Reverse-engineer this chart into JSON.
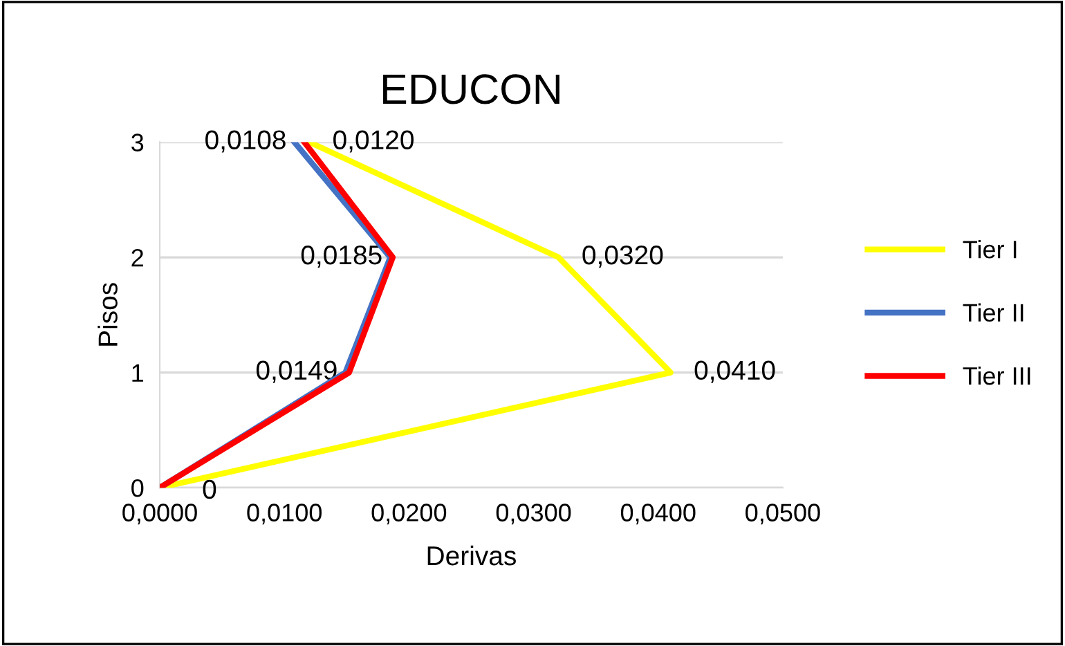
{
  "chart_data": {
    "type": "line",
    "title": "EDUCON",
    "xlabel": "Derivas",
    "ylabel": "Pisos",
    "xlim": [
      0,
      0.05
    ],
    "xticks": [
      {
        "value": 0,
        "label": "0,0000"
      },
      {
        "value": 0.01,
        "label": "0,0100"
      },
      {
        "value": 0.02,
        "label": "0,0200"
      },
      {
        "value": 0.03,
        "label": "0,0300"
      },
      {
        "value": 0.04,
        "label": "0,0400"
      },
      {
        "value": 0.05,
        "label": "0,0500"
      }
    ],
    "ylim": [
      0,
      3
    ],
    "yticks": [
      0,
      1,
      2,
      3
    ],
    "grid": "y",
    "legend": "right",
    "marker": "none",
    "line_style": "solid",
    "series": [
      {
        "name": "Tier I",
        "color": "#ffff00",
        "x": [
          0,
          0.041,
          0.032,
          0.012
        ],
        "values": [
          0,
          1,
          2,
          3
        ]
      },
      {
        "name": "Tier II",
        "color": "#4472c4",
        "x": [
          0,
          0.0149,
          0.0185,
          0.0108
        ],
        "values": [
          0,
          1,
          2,
          3
        ]
      },
      {
        "name": "Tier III",
        "color": "#ff0000",
        "x": [
          0,
          0.0152,
          0.0187,
          0.0116
        ],
        "values": [
          0,
          1,
          2,
          3
        ]
      }
    ],
    "annotations": [
      {
        "text": "0",
        "x": 0,
        "y": 0
      },
      {
        "text": "0,0410",
        "x": 0.041,
        "y": 1
      },
      {
        "text": "0,0320",
        "x": 0.032,
        "y": 2
      },
      {
        "text": "0,0120",
        "x": 0.012,
        "y": 3
      },
      {
        "text": "0,0149",
        "x": 0.0149,
        "y": 1
      },
      {
        "text": "0,0185",
        "x": 0.0185,
        "y": 2
      },
      {
        "text": "0,0108",
        "x": 0.0108,
        "y": 3
      }
    ]
  }
}
